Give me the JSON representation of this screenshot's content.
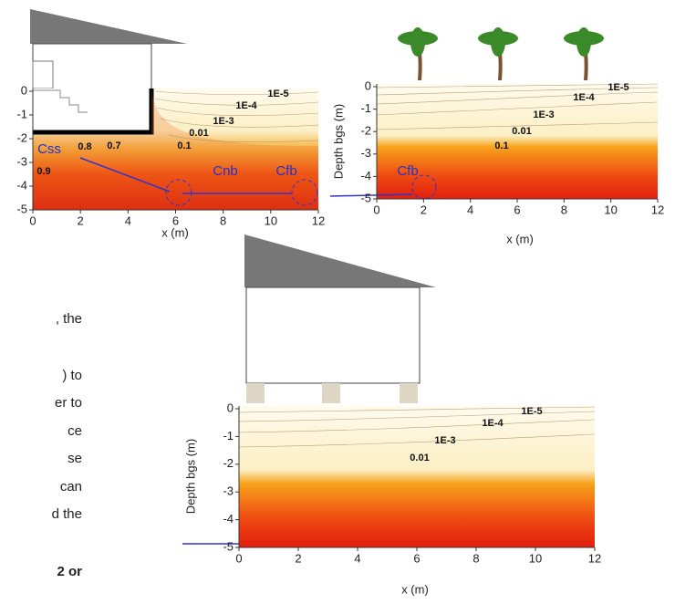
{
  "left_panel": {
    "xlabel": "x (m)",
    "xticks": [
      "0",
      "2",
      "4",
      "6",
      "8",
      "10",
      "12"
    ],
    "yticks": [
      "0",
      "-1",
      "-2",
      "-3",
      "-4",
      "-5"
    ],
    "contour_labels": [
      "1E-5",
      "1E-4",
      "1E-3",
      "0.01",
      "0.1",
      "0.7",
      "0.8",
      "0.9"
    ],
    "annotations": [
      "Css",
      "Cnb",
      "Cfb"
    ]
  },
  "right_panel": {
    "xlabel": "x (m)",
    "ylabel": "Depth bgs (m)",
    "xticks": [
      "0",
      "2",
      "4",
      "6",
      "8",
      "10",
      "12"
    ],
    "yticks": [
      "0",
      "-1",
      "-2",
      "-3",
      "-4",
      "-5"
    ],
    "contour_labels": [
      "1E-5",
      "1E-4",
      "1E-3",
      "0.01",
      "0.1"
    ],
    "annotations": [
      "Cfb"
    ]
  },
  "bottom_panel": {
    "xlabel": "x (m)",
    "ylabel": "Depth bgs (m)",
    "xticks": [
      "0",
      "2",
      "4",
      "6",
      "8",
      "10",
      "12"
    ],
    "yticks": [
      "0",
      "-1",
      "-2",
      "-3",
      "-4",
      "-5"
    ],
    "contour_labels": [
      "1E-5",
      "1E-4",
      "1E-3",
      "0.01"
    ]
  },
  "side_text": [
    ", the",
    ") to",
    "er to",
    "ce",
    "se",
    "can",
    "d the",
    "2 or"
  ]
}
